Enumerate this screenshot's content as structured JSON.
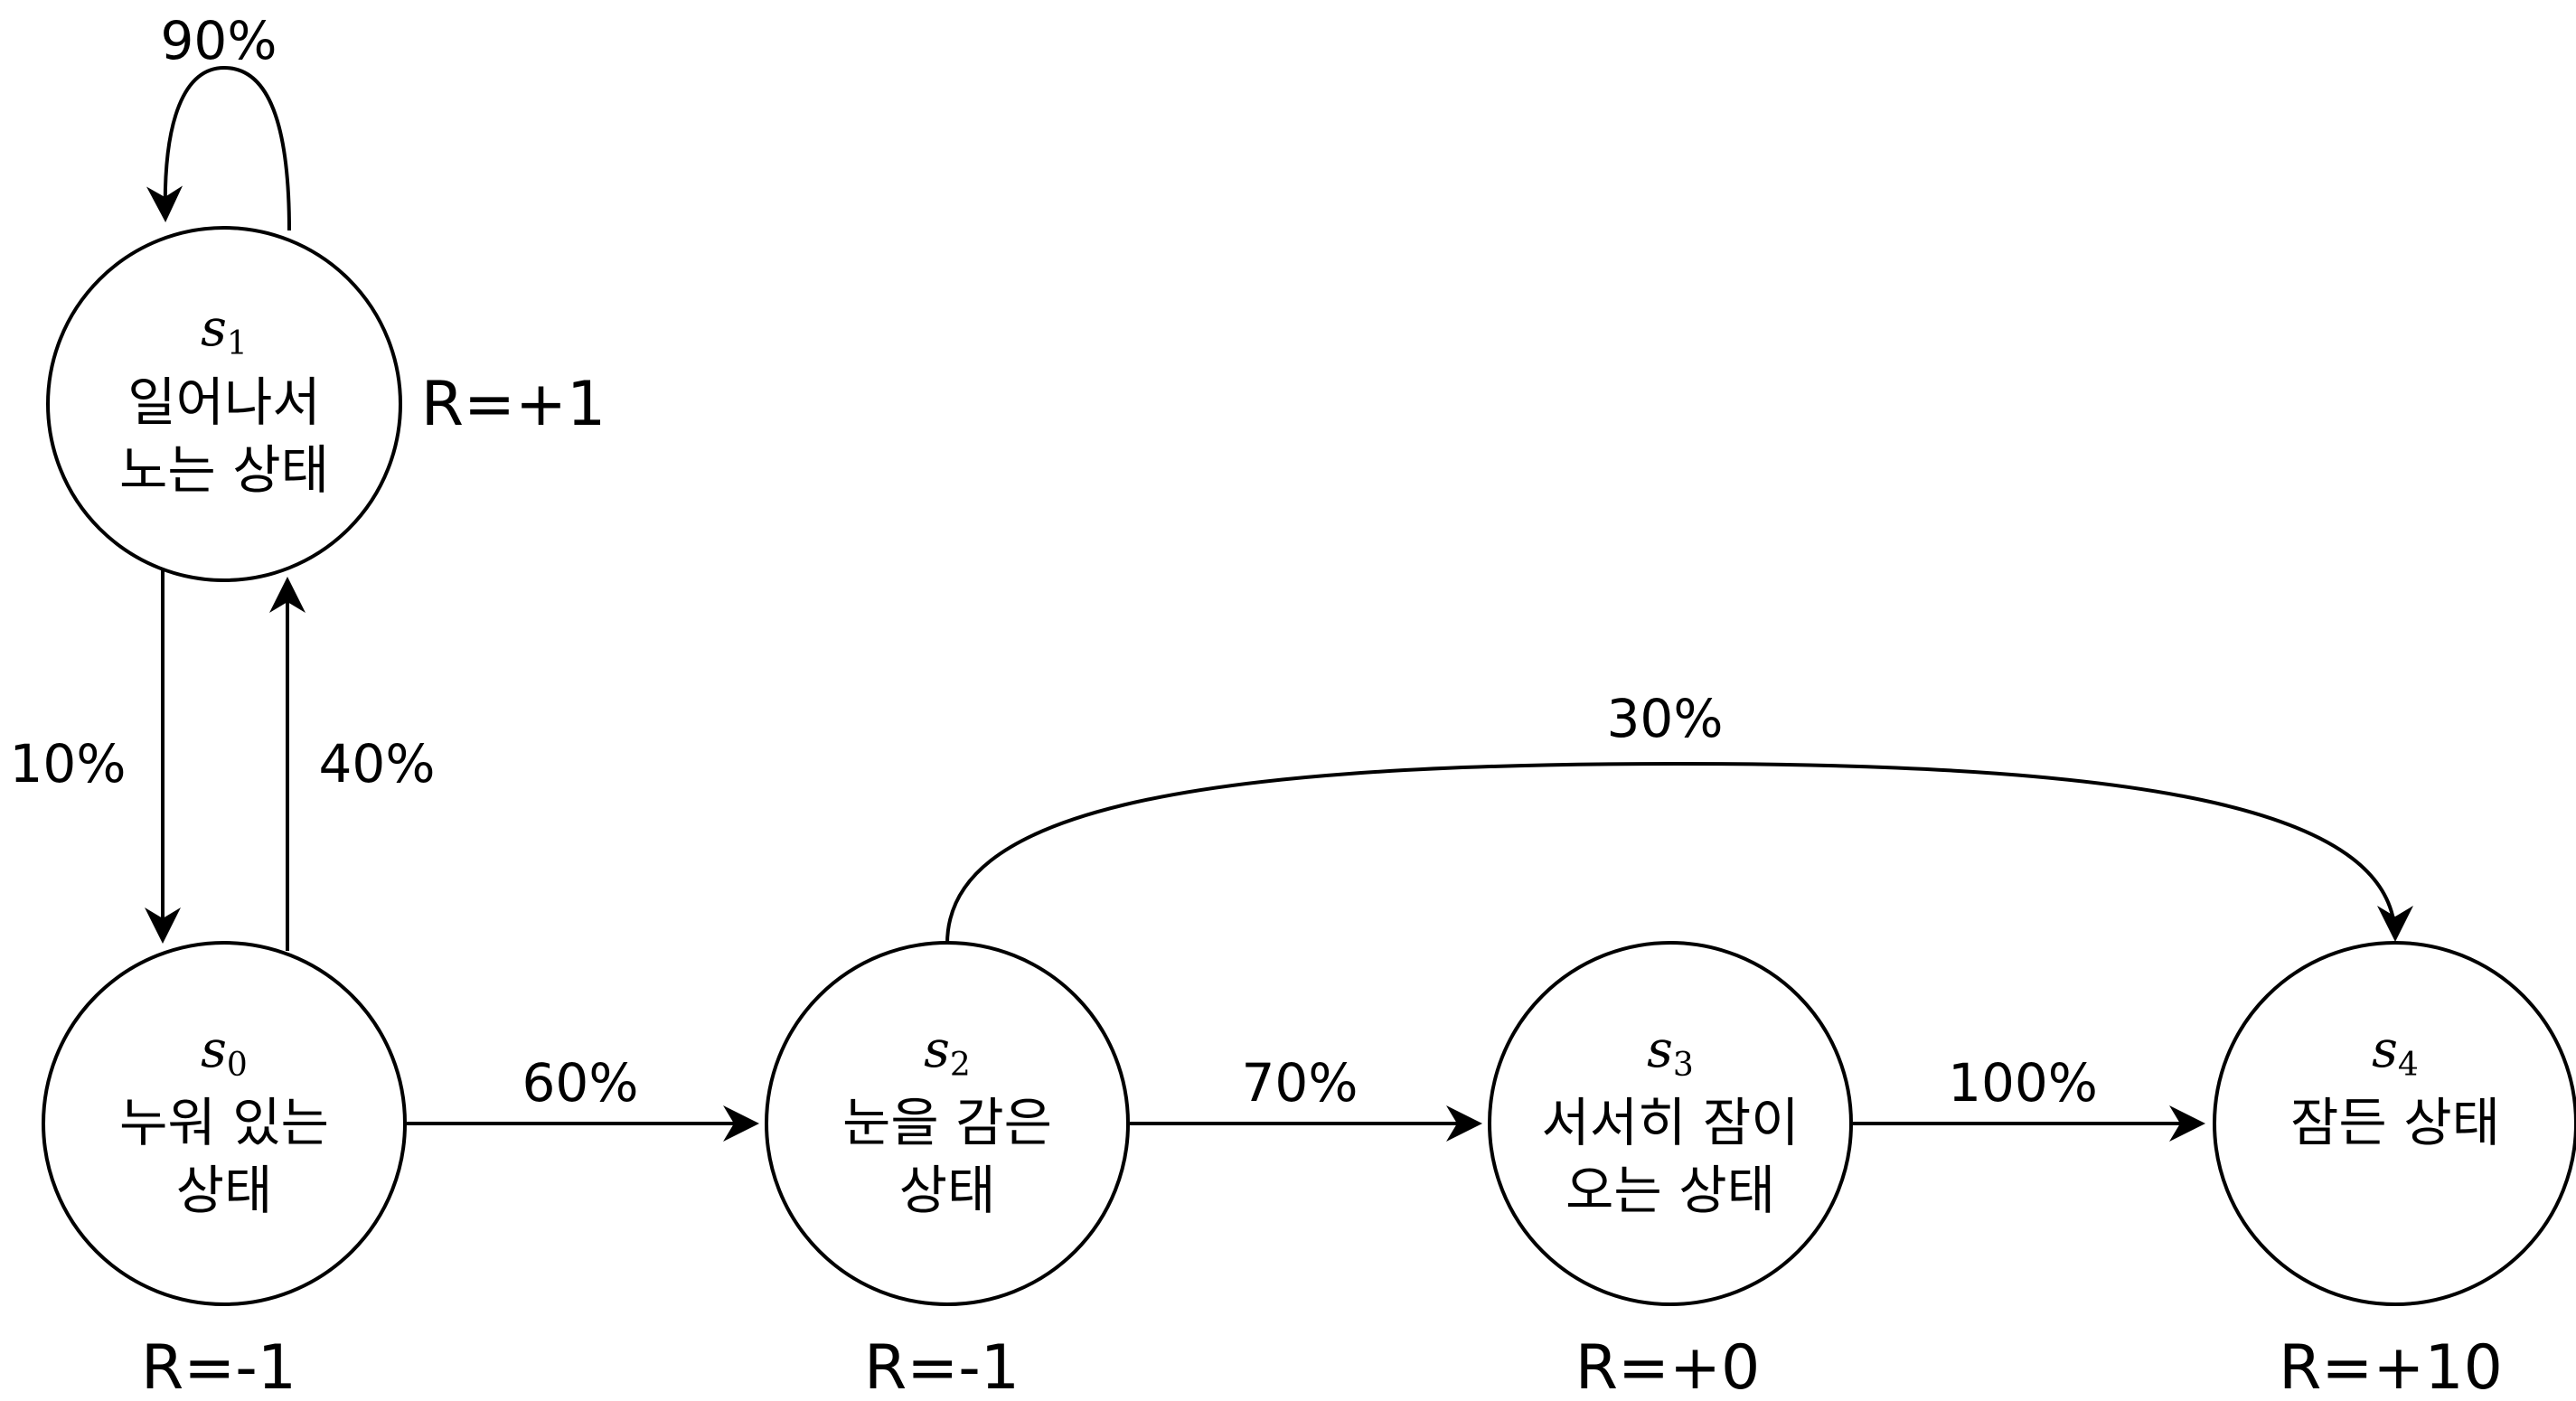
{
  "states": {
    "s0": {
      "symbol": "s",
      "subscript": "0",
      "line1": "누워 있는",
      "line2": "상태",
      "reward": "R=-1"
    },
    "s1": {
      "symbol": "s",
      "subscript": "1",
      "line1": "일어나서",
      "line2": "노는 상태",
      "reward": "R=+1"
    },
    "s2": {
      "symbol": "s",
      "subscript": "2",
      "line1": "눈을 감은",
      "line2": "상태",
      "reward": "R=-1"
    },
    "s3": {
      "symbol": "s",
      "subscript": "3",
      "line1": "서서히 잠이",
      "line2": "오는 상태",
      "reward": "R=+0"
    },
    "s4": {
      "symbol": "s",
      "subscript": "4",
      "line1": "잠든 상태",
      "reward": "R=+10"
    }
  },
  "transitions": {
    "s1_s1": "90%",
    "s1_s0": "10%",
    "s0_s1": "40%",
    "s0_s2": "60%",
    "s2_s3": "70%",
    "s3_s4": "100%",
    "s2_s4": "30%"
  },
  "colors": {
    "stroke": "#000000",
    "background": "#ffffff"
  }
}
